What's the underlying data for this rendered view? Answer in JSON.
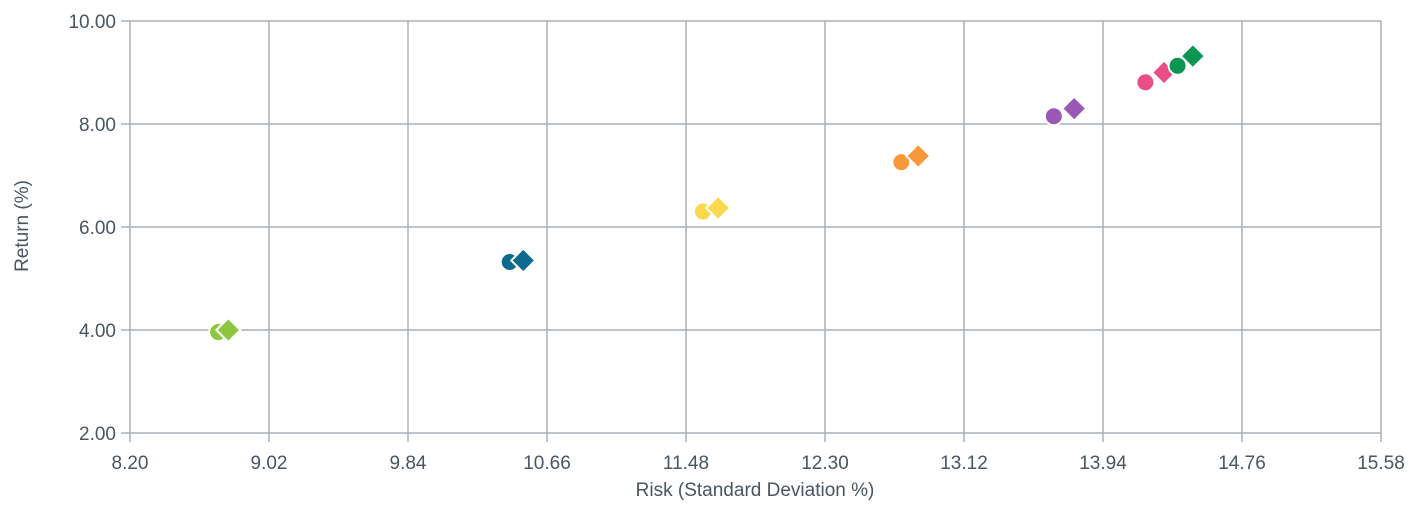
{
  "chart_data": {
    "type": "scatter",
    "title": "",
    "xlabel": "Risk (Standard Deviation %)",
    "ylabel": "Return (%)",
    "xlim": [
      8.2,
      15.58
    ],
    "ylim": [
      2.0,
      10.0
    ],
    "xticks": [
      "8.20",
      "9.02",
      "9.84",
      "10.66",
      "11.48",
      "12.30",
      "13.12",
      "13.94",
      "14.76",
      "15.58"
    ],
    "yticks": [
      "2.00",
      "4.00",
      "6.00",
      "8.00",
      "10.00"
    ],
    "grid": true,
    "series": [
      {
        "color": "#8dc63f",
        "points": [
          {
            "x": 8.72,
            "y": 3.96,
            "marker": "circle"
          },
          {
            "x": 8.78,
            "y": 4.0,
            "marker": "diamond"
          }
        ]
      },
      {
        "color": "#0b6a8d",
        "points": [
          {
            "x": 10.44,
            "y": 5.32,
            "marker": "circle"
          },
          {
            "x": 10.52,
            "y": 5.35,
            "marker": "diamond"
          }
        ]
      },
      {
        "color": "#fcd84c",
        "points": [
          {
            "x": 11.58,
            "y": 6.3,
            "marker": "circle"
          },
          {
            "x": 11.67,
            "y": 6.37,
            "marker": "diamond"
          }
        ]
      },
      {
        "color": "#f7993a",
        "points": [
          {
            "x": 12.75,
            "y": 7.26,
            "marker": "circle"
          },
          {
            "x": 12.85,
            "y": 7.38,
            "marker": "diamond"
          }
        ]
      },
      {
        "color": "#9b59b6",
        "points": [
          {
            "x": 13.65,
            "y": 8.15,
            "marker": "circle"
          },
          {
            "x": 13.77,
            "y": 8.3,
            "marker": "diamond"
          }
        ]
      },
      {
        "color": "#ea4e86",
        "points": [
          {
            "x": 14.19,
            "y": 8.81,
            "marker": "circle"
          },
          {
            "x": 14.3,
            "y": 9.0,
            "marker": "diamond"
          }
        ]
      },
      {
        "color": "#0a9550",
        "points": [
          {
            "x": 14.38,
            "y": 9.13,
            "marker": "circle"
          },
          {
            "x": 14.47,
            "y": 9.32,
            "marker": "diamond"
          }
        ]
      }
    ]
  }
}
